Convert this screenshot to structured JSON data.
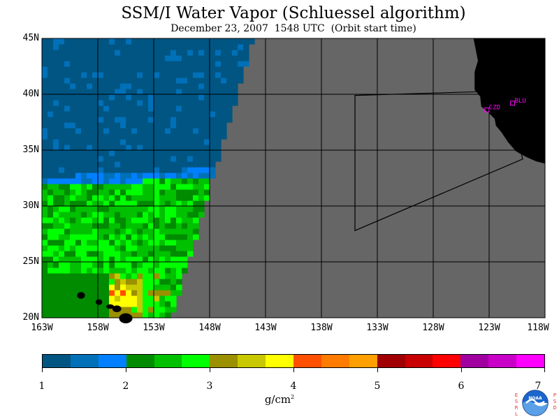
{
  "title": "SSM/I Water Vapor (Schluessel algorithm)",
  "subtitle": "December 23, 2007  1548 UTC  (Orbit start time)",
  "map": {
    "lat_range": [
      20,
      45
    ],
    "lon_range": [
      -163,
      -118
    ],
    "lat_ticks": [
      "20N",
      "25N",
      "30N",
      "35N",
      "40N",
      "45N"
    ],
    "lon_ticks": [
      "163W",
      "158W",
      "153W",
      "148W",
      "143W",
      "138W",
      "133W",
      "128W",
      "123W",
      "118W"
    ],
    "grid": true,
    "colors": {
      "no_data": "#666666",
      "land": "#000000",
      "grid_line": "#000000",
      "station": "#ff00ff"
    },
    "stations": [
      {
        "id": "CZD",
        "lon": -123.2,
        "lat": 38.6
      },
      {
        "id": "BLU",
        "lon": -120.9,
        "lat": 39.2
      }
    ],
    "box_outline": [
      [
        -135.0,
        39.9
      ],
      [
        -121.5,
        40.3
      ],
      [
        -120.0,
        34.2
      ],
      [
        -135.0,
        27.8
      ]
    ]
  },
  "colorbar": {
    "range": [
      1,
      7
    ],
    "tick_labels": [
      "1",
      "2",
      "3",
      "4",
      "5",
      "6",
      "7"
    ],
    "unit_base": "g/cm",
    "unit_exp": "2",
    "colors": [
      "#005582",
      "#0070b8",
      "#0080ff",
      "#008b00",
      "#00c000",
      "#00ff00",
      "#9a9000",
      "#c8c800",
      "#ffff00",
      "#ff5000",
      "#ff7c00",
      "#ffa000",
      "#a00000",
      "#c80000",
      "#ff0000",
      "#a000a0",
      "#c800c8",
      "#ff00ff"
    ]
  },
  "logo": {
    "agency_left": "ESRL",
    "agency_right": "PSD",
    "emblem_text": "NOAA"
  }
}
